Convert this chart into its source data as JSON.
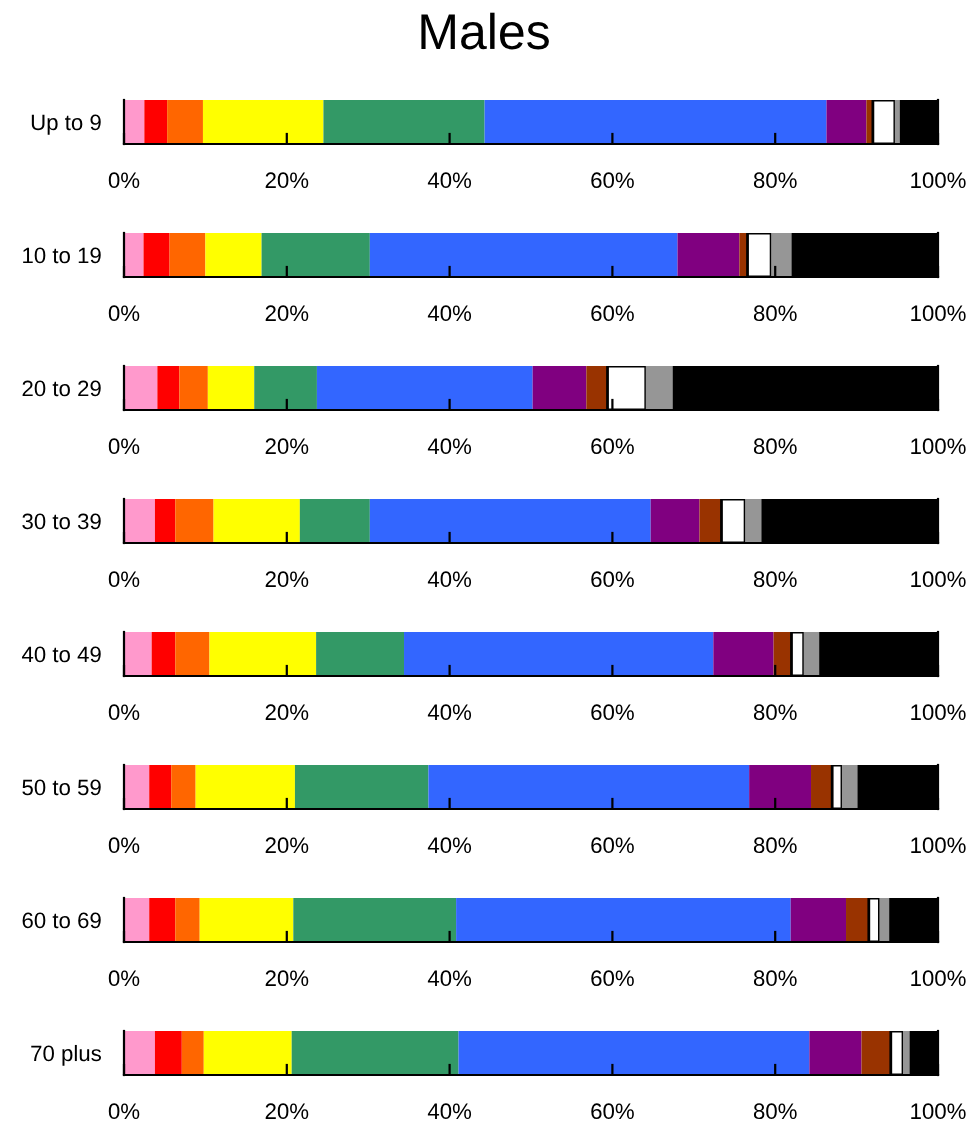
{
  "chart_data": [
    {
      "type": "bar",
      "title": "Males",
      "orientation": "horizontal",
      "stacked": true,
      "categories": [
        "Up to 9"
      ],
      "xlim": [
        0,
        100
      ],
      "xticks": [
        {
          "value": 0,
          "label": "0%"
        },
        {
          "value": 20,
          "label": "20%"
        },
        {
          "value": 40,
          "label": "40%"
        },
        {
          "value": 60,
          "label": "60%"
        },
        {
          "value": 80,
          "label": "80%"
        },
        {
          "value": 100,
          "label": "100%"
        }
      ],
      "series": [
        {
          "color": "#ff99cc",
          "values": [
            2.5
          ]
        },
        {
          "color": "#ff0000",
          "values": [
            2.8
          ]
        },
        {
          "color": "#ff6600",
          "values": [
            4.4
          ]
        },
        {
          "color": "#ffff00",
          "values": [
            14.8
          ]
        },
        {
          "color": "#339966",
          "values": [
            19.8
          ]
        },
        {
          "color": "#3366ff",
          "values": [
            42.0
          ]
        },
        {
          "color": "#800080",
          "values": [
            4.9
          ]
        },
        {
          "color": "#993300",
          "values": [
            0.8
          ]
        },
        {
          "color": "#ffffff",
          "values": [
            2.7
          ]
        },
        {
          "color": "#969696",
          "values": [
            0.6
          ]
        },
        {
          "color": "#000000",
          "values": [
            4.7
          ]
        }
      ]
    },
    {
      "type": "bar",
      "orientation": "horizontal",
      "stacked": true,
      "categories": [
        "10 to 19"
      ],
      "xlim": [
        0,
        100
      ],
      "xticks": [
        {
          "value": 0,
          "label": "0%"
        },
        {
          "value": 20,
          "label": "20%"
        },
        {
          "value": 40,
          "label": "40%"
        },
        {
          "value": 60,
          "label": "60%"
        },
        {
          "value": 80,
          "label": "80%"
        },
        {
          "value": 100,
          "label": "100%"
        }
      ],
      "series": [
        {
          "color": "#ff99cc",
          "values": [
            2.4
          ]
        },
        {
          "color": "#ff0000",
          "values": [
            3.2
          ]
        },
        {
          "color": "#ff6600",
          "values": [
            4.4
          ]
        },
        {
          "color": "#ffff00",
          "values": [
            6.9
          ]
        },
        {
          "color": "#339966",
          "values": [
            13.3
          ]
        },
        {
          "color": "#3366ff",
          "values": [
            37.8
          ]
        },
        {
          "color": "#800080",
          "values": [
            7.6
          ]
        },
        {
          "color": "#993300",
          "values": [
            1.0
          ]
        },
        {
          "color": "#ffffff",
          "values": [
            2.9
          ]
        },
        {
          "color": "#969696",
          "values": [
            2.5
          ]
        },
        {
          "color": "#000000",
          "values": [
            18.0
          ]
        }
      ]
    },
    {
      "type": "bar",
      "orientation": "horizontal",
      "stacked": true,
      "categories": [
        "20 to 29"
      ],
      "xlim": [
        0,
        100
      ],
      "xticks": [
        {
          "value": 0,
          "label": "0%"
        },
        {
          "value": 20,
          "label": "20%"
        },
        {
          "value": 40,
          "label": "40%"
        },
        {
          "value": 60,
          "label": "60%"
        },
        {
          "value": 80,
          "label": "80%"
        },
        {
          "value": 100,
          "label": "100%"
        }
      ],
      "series": [
        {
          "color": "#ff99cc",
          "values": [
            4.1
          ]
        },
        {
          "color": "#ff0000",
          "values": [
            2.7
          ]
        },
        {
          "color": "#ff6600",
          "values": [
            3.5
          ]
        },
        {
          "color": "#ffff00",
          "values": [
            5.7
          ]
        },
        {
          "color": "#339966",
          "values": [
            7.7
          ]
        },
        {
          "color": "#3366ff",
          "values": [
            26.5
          ]
        },
        {
          "color": "#800080",
          "values": [
            6.6
          ]
        },
        {
          "color": "#993300",
          "values": [
            2.6
          ]
        },
        {
          "color": "#ffffff",
          "values": [
            4.7
          ]
        },
        {
          "color": "#969696",
          "values": [
            3.3
          ]
        },
        {
          "color": "#000000",
          "values": [
            32.6
          ]
        }
      ]
    },
    {
      "type": "bar",
      "orientation": "horizontal",
      "stacked": true,
      "categories": [
        "30 to 39"
      ],
      "xlim": [
        0,
        100
      ],
      "xticks": [
        {
          "value": 0,
          "label": "0%"
        },
        {
          "value": 20,
          "label": "20%"
        },
        {
          "value": 40,
          "label": "40%"
        },
        {
          "value": 60,
          "label": "60%"
        },
        {
          "value": 80,
          "label": "80%"
        },
        {
          "value": 100,
          "label": "100%"
        }
      ],
      "series": [
        {
          "color": "#ff99cc",
          "values": [
            3.8
          ]
        },
        {
          "color": "#ff0000",
          "values": [
            2.5
          ]
        },
        {
          "color": "#ff6600",
          "values": [
            4.7
          ]
        },
        {
          "color": "#ffff00",
          "values": [
            10.6
          ]
        },
        {
          "color": "#339966",
          "values": [
            8.6
          ]
        },
        {
          "color": "#3366ff",
          "values": [
            34.5
          ]
        },
        {
          "color": "#800080",
          "values": [
            6.0
          ]
        },
        {
          "color": "#993300",
          "values": [
            2.7
          ]
        },
        {
          "color": "#ffffff",
          "values": [
            2.9
          ]
        },
        {
          "color": "#969696",
          "values": [
            2.0
          ]
        },
        {
          "color": "#000000",
          "values": [
            21.7
          ]
        }
      ]
    },
    {
      "type": "bar",
      "orientation": "horizontal",
      "stacked": true,
      "categories": [
        "40 to 49"
      ],
      "xlim": [
        0,
        100
      ],
      "xticks": [
        {
          "value": 0,
          "label": "0%"
        },
        {
          "value": 20,
          "label": "20%"
        },
        {
          "value": 40,
          "label": "40%"
        },
        {
          "value": 60,
          "label": "60%"
        },
        {
          "value": 80,
          "label": "80%"
        },
        {
          "value": 100,
          "label": "100%"
        }
      ],
      "series": [
        {
          "color": "#ff99cc",
          "values": [
            3.4
          ]
        },
        {
          "color": "#ff0000",
          "values": [
            2.9
          ]
        },
        {
          "color": "#ff6600",
          "values": [
            4.2
          ]
        },
        {
          "color": "#ffff00",
          "values": [
            13.1
          ]
        },
        {
          "color": "#339966",
          "values": [
            10.8
          ]
        },
        {
          "color": "#3366ff",
          "values": [
            38.0
          ]
        },
        {
          "color": "#800080",
          "values": [
            7.4
          ]
        },
        {
          "color": "#993300",
          "values": [
            2.2
          ]
        },
        {
          "color": "#ffffff",
          "values": [
            1.5
          ]
        },
        {
          "color": "#969696",
          "values": [
            1.9
          ]
        },
        {
          "color": "#000000",
          "values": [
            14.6
          ]
        }
      ]
    },
    {
      "type": "bar",
      "orientation": "horizontal",
      "stacked": true,
      "categories": [
        "50 to 59"
      ],
      "xlim": [
        0,
        100
      ],
      "xticks": [
        {
          "value": 0,
          "label": "0%"
        },
        {
          "value": 20,
          "label": "20%"
        },
        {
          "value": 40,
          "label": "40%"
        },
        {
          "value": 60,
          "label": "60%"
        },
        {
          "value": 80,
          "label": "80%"
        },
        {
          "value": 100,
          "label": "100%"
        }
      ],
      "series": [
        {
          "color": "#ff99cc",
          "values": [
            3.1
          ]
        },
        {
          "color": "#ff0000",
          "values": [
            2.7
          ]
        },
        {
          "color": "#ff6600",
          "values": [
            3.0
          ]
        },
        {
          "color": "#ffff00",
          "values": [
            12.2
          ]
        },
        {
          "color": "#339966",
          "values": [
            16.4
          ]
        },
        {
          "color": "#3366ff",
          "values": [
            39.4
          ]
        },
        {
          "color": "#800080",
          "values": [
            7.6
          ]
        },
        {
          "color": "#993300",
          "values": [
            2.6
          ]
        },
        {
          "color": "#ffffff",
          "values": [
            1.2
          ]
        },
        {
          "color": "#969696",
          "values": [
            1.9
          ]
        },
        {
          "color": "#000000",
          "values": [
            9.9
          ]
        }
      ]
    },
    {
      "type": "bar",
      "orientation": "horizontal",
      "stacked": true,
      "categories": [
        "60 to 69"
      ],
      "xlim": [
        0,
        100
      ],
      "xticks": [
        {
          "value": 0,
          "label": "0%"
        },
        {
          "value": 20,
          "label": "20%"
        },
        {
          "value": 40,
          "label": "40%"
        },
        {
          "value": 60,
          "label": "60%"
        },
        {
          "value": 80,
          "label": "80%"
        },
        {
          "value": 100,
          "label": "100%"
        }
      ],
      "series": [
        {
          "color": "#ff99cc",
          "values": [
            3.1
          ]
        },
        {
          "color": "#ff0000",
          "values": [
            3.2
          ]
        },
        {
          "color": "#ff6600",
          "values": [
            3.0
          ]
        },
        {
          "color": "#ffff00",
          "values": [
            11.5
          ]
        },
        {
          "color": "#339966",
          "values": [
            20.0
          ]
        },
        {
          "color": "#3366ff",
          "values": [
            41.1
          ]
        },
        {
          "color": "#800080",
          "values": [
            6.8
          ]
        },
        {
          "color": "#993300",
          "values": [
            2.8
          ]
        },
        {
          "color": "#ffffff",
          "values": [
            1.3
          ]
        },
        {
          "color": "#969696",
          "values": [
            1.2
          ]
        },
        {
          "color": "#000000",
          "values": [
            6.0
          ]
        }
      ]
    },
    {
      "type": "bar",
      "orientation": "horizontal",
      "stacked": true,
      "categories": [
        "70 plus"
      ],
      "xlim": [
        0,
        100
      ],
      "xticks": [
        {
          "value": 0,
          "label": "0%"
        },
        {
          "value": 20,
          "label": "20%"
        },
        {
          "value": 40,
          "label": "40%"
        },
        {
          "value": 60,
          "label": "60%"
        },
        {
          "value": 80,
          "label": "80%"
        },
        {
          "value": 100,
          "label": "100%"
        }
      ],
      "series": [
        {
          "color": "#ff99cc",
          "values": [
            3.8
          ]
        },
        {
          "color": "#ff0000",
          "values": [
            3.3
          ]
        },
        {
          "color": "#ff6600",
          "values": [
            2.7
          ]
        },
        {
          "color": "#ffff00",
          "values": [
            10.8
          ]
        },
        {
          "color": "#339966",
          "values": [
            20.5
          ]
        },
        {
          "color": "#3366ff",
          "values": [
            43.1
          ]
        },
        {
          "color": "#800080",
          "values": [
            6.4
          ]
        },
        {
          "color": "#993300",
          "values": [
            3.6
          ]
        },
        {
          "color": "#ffffff",
          "values": [
            1.5
          ]
        },
        {
          "color": "#969696",
          "values": [
            0.8
          ]
        },
        {
          "color": "#000000",
          "values": [
            3.5
          ]
        }
      ]
    }
  ]
}
